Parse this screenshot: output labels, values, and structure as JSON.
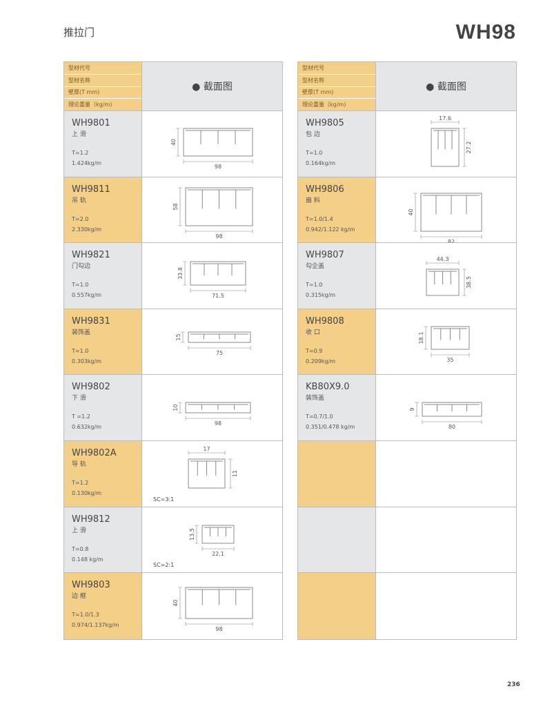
{
  "header": {
    "category": "推拉门",
    "series": "WH98"
  },
  "table_header": {
    "labels": [
      "型材代号",
      "型材名称",
      "壁厚(T mm)",
      "理论重量（kg/m)"
    ],
    "section_title": "● 截面图"
  },
  "colors": {
    "orange": "#f3cf88",
    "grey": "#e5e6e8"
  },
  "left_items": [
    {
      "code": "WH9801",
      "name": "上 滑",
      "thickness": "T=1.2",
      "weight": "1.424kg/m",
      "dim_h": "40",
      "dim_w": "98",
      "sc": ""
    },
    {
      "code": "WH9811",
      "name": "吊 轨",
      "thickness": "T=2.0",
      "weight": "2.330kg/m",
      "dim_h": "58",
      "dim_w": "98",
      "sc": ""
    },
    {
      "code": "WH9821",
      "name": "门勾边",
      "thickness": "T=1.0",
      "weight": "0.557kg/m",
      "dim_h": "33.8",
      "dim_w": "71.5",
      "sc": ""
    },
    {
      "code": "WH9831",
      "name": "装饰盖",
      "thickness": "T=1.0",
      "weight": "0.303kg/m",
      "dim_h": "15",
      "dim_w": "75",
      "sc": ""
    },
    {
      "code": "WH9802",
      "name": "下 滑",
      "thickness": "T =1.2",
      "weight": "0.632kg/m",
      "dim_h": "10",
      "dim_w": "98",
      "sc": ""
    },
    {
      "code": "WH9802A",
      "name": "导 轨",
      "thickness": "T=1.2",
      "weight": "0.130kg/m",
      "dim_h": "11",
      "dim_w": "17",
      "sc": "SC=3:1"
    },
    {
      "code": "WH9812",
      "name": "上 滑",
      "thickness": "T=0.8",
      "weight": "0.148 kg/m",
      "dim_h": "13.5",
      "dim_w": "22.1",
      "sc": "SC=2:1"
    },
    {
      "code": "WH9803",
      "name": "边 框",
      "thickness": "T=1.0/1.3",
      "weight": "0.974/1.137kg/m",
      "dim_h": "40",
      "dim_w": "98",
      "sc": ""
    }
  ],
  "right_items": [
    {
      "code": "WH9805",
      "name": "包 边",
      "thickness": "T=1.0",
      "weight": "0.164kg/m",
      "dim_h": "27.2",
      "dim_w": "17.6",
      "sc": ""
    },
    {
      "code": "WH9806",
      "name": "扇 料",
      "thickness": "T=1.0/1.4",
      "weight": "0.942/1.122 kg/m",
      "dim_h": "40",
      "dim_w": "82",
      "sc": ""
    },
    {
      "code": "WH9807",
      "name": "勾企盖",
      "thickness": "T=1.0",
      "weight": "0.315kg/m",
      "dim_h": "38.5",
      "dim_w": "44.3",
      "sc": ""
    },
    {
      "code": "WH9808",
      "name": "收 口",
      "thickness": "T=0.9",
      "weight": "0.209kg/m",
      "dim_h": "18.1",
      "dim_w": "35",
      "sc": ""
    },
    {
      "code": "KB80X9.0",
      "name": "装饰盖",
      "thickness": "T=0.7/1.0",
      "weight": "0.351/0.478 kg/m",
      "dim_h": "9",
      "dim_w": "80",
      "sc": ""
    },
    {
      "code": "",
      "name": "",
      "thickness": "",
      "weight": "",
      "dim_h": "",
      "dim_w": "",
      "sc": ""
    },
    {
      "code": "",
      "name": "",
      "thickness": "",
      "weight": "",
      "dim_h": "",
      "dim_w": "",
      "sc": ""
    },
    {
      "code": "",
      "name": "",
      "thickness": "",
      "weight": "",
      "dim_h": "",
      "dim_w": "",
      "sc": ""
    }
  ],
  "page_number": "236"
}
